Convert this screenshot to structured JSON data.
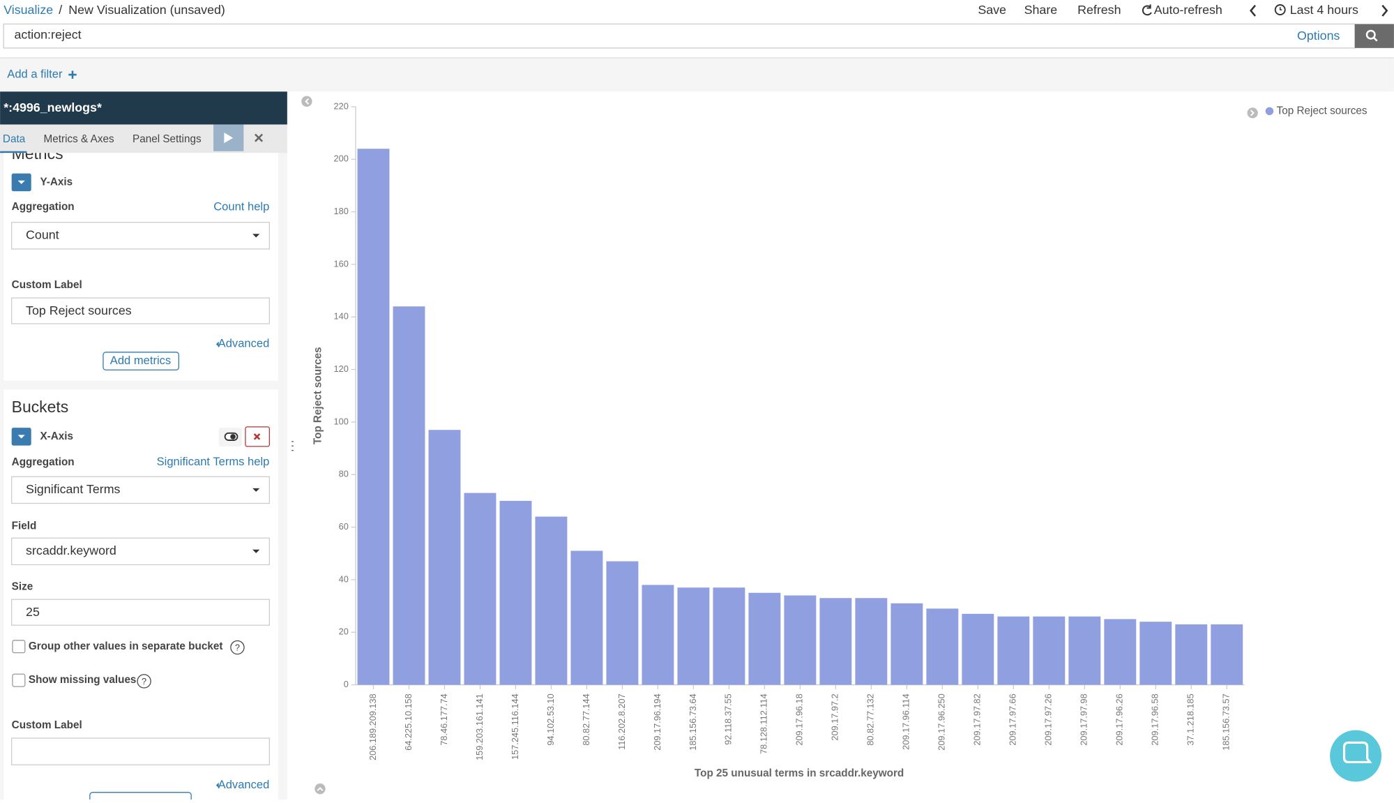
{
  "breadcrumb": {
    "app": "Visualize",
    "separator": "/",
    "title": "New Visualization (unsaved)"
  },
  "top_menu": [
    "Save",
    "Share",
    "Refresh",
    "Auto-refresh",
    "Last 4 hours"
  ],
  "query": "action:reject",
  "options": "Options",
  "add_filter": "Add a filter",
  "sidebar": {
    "index": "*:4996_newlogs*",
    "tabs": [
      "Data",
      "Metrics & Axes",
      "Panel Settings"
    ],
    "metrics": {
      "heading": "Metrics",
      "agg_label": "Y-Axis",
      "aggregation_label": "Aggregation",
      "help": "Count help",
      "aggregation": "Count",
      "custom_label_label": "Custom Label",
      "custom_label": "Top Reject sources",
      "advanced": "Advanced",
      "add": "Add metrics"
    },
    "buckets": {
      "heading": "Buckets",
      "agg_label": "X-Axis",
      "aggregation_label": "Aggregation",
      "help": "Significant Terms help",
      "aggregation": "Significant Terms",
      "field_label": "Field",
      "field": "srcaddr.keyword",
      "size_label": "Size",
      "size": 25,
      "group_other": "Group other values in separate bucket",
      "show_missing": "Show missing values",
      "custom_label_label": "Custom Label",
      "advanced": "Advanced"
    }
  },
  "chart_data": {
    "type": "bar",
    "x_label": "Top 25 unusual terms in srcaddr.keyword",
    "y_label": "Top Reject sources",
    "categories": [
      "206.189.209.138",
      "64.225.10.158",
      "78.46.177.74",
      "159.203.161.141",
      "157.245.116.144",
      "94.102.53.10",
      "80.82.77.144",
      "116.202.8.207",
      "209.17.96.194",
      "185.156.73.64",
      "92.118.37.55",
      "78.128.112.114",
      "209.17.96.18",
      "209.17.97.2",
      "80.82.77.132",
      "209.17.96.114",
      "209.17.96.250",
      "209.17.97.82",
      "209.17.97.66",
      "209.17.97.26",
      "209.17.97.98",
      "209.17.96.26",
      "209.17.96.58",
      "37.1.218.185",
      "185.156.73.57"
    ],
    "series": [
      {
        "name": "Top Reject sources",
        "color": "#8f9fdf",
        "values": [
          204,
          144,
          97,
          73,
          70,
          64,
          51,
          47,
          38,
          37,
          37,
          35,
          34,
          33,
          33,
          31,
          29,
          27,
          26,
          26,
          26,
          25,
          24,
          23,
          23
        ]
      }
    ],
    "ylim": [
      0,
      220
    ],
    "yticks": [
      0,
      20,
      40,
      60,
      80,
      100,
      120,
      140,
      160,
      180,
      200,
      220
    ],
    "legend": "top-right"
  }
}
